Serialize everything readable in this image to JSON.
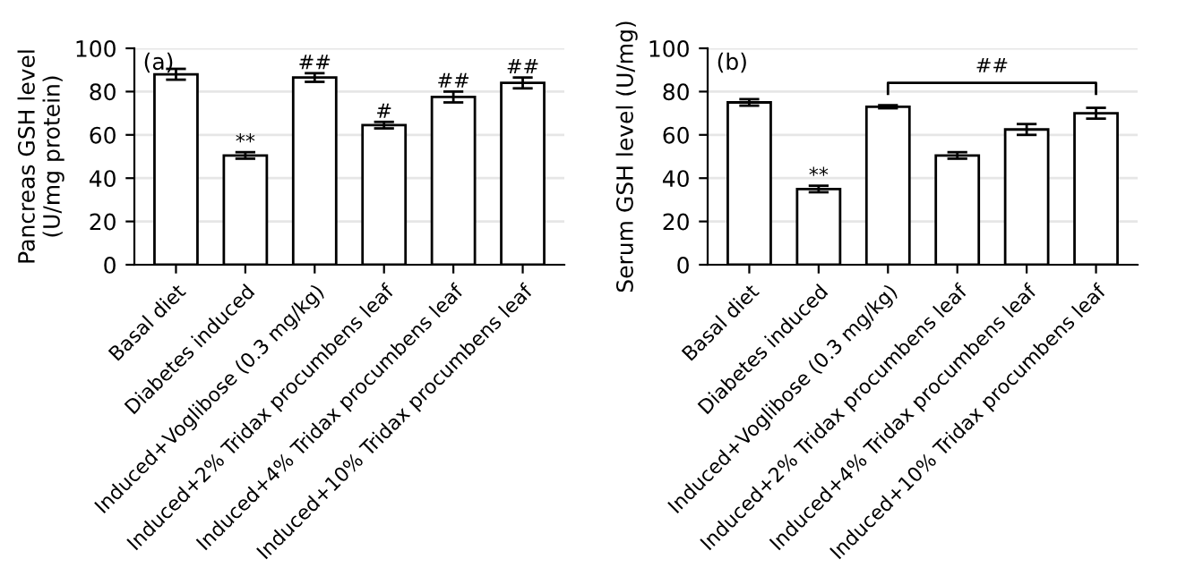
{
  "chart_data": [
    {
      "type": "bar",
      "ylabel": "Pancreas GSH level\n(U/mg protein)",
      "categories": [
        "Basal diet",
        "Diabetes induced",
        "Induced+Voglibose (0.3 mg/kg)",
        "Induced+2% Tridax procumbens leaf",
        "Induced+4% Tridax procumbens leaf",
        "Induced+10% Tridax procumbens leaf"
      ],
      "series": [
        {
          "color": "#ffffff",
          "values": [
            88,
            50.5,
            86.5,
            64.5,
            77.5,
            84
          ],
          "errors": [
            2.5,
            1.5,
            2,
            1.5,
            2.5,
            2.5
          ]
        }
      ],
      "ylim": [
        0,
        100
      ],
      "yticks": [
        0,
        20,
        40,
        60,
        80,
        100
      ],
      "grid": "y",
      "annotations": [
        "(a)",
        {
          "text": "**",
          "x": "Diabetes induced",
          "y": 52
        },
        {
          "text": "##",
          "x": "Induced+Voglibose (0.3 mg/kg)",
          "y": 88.5
        },
        {
          "text": "#",
          "x": "Induced+2% Tridax procumbens leaf",
          "y": 66
        },
        {
          "text": "##",
          "x": "Induced+4% Tridax procumbens leaf",
          "y": 80
        },
        {
          "text": "##",
          "x": "Induced+10% Tridax procumbens leaf",
          "y": 86.5
        }
      ]
    },
    {
      "type": "bar",
      "ylabel": "Serum GSH level (U/mg)",
      "categories": [
        "Basal diet",
        "Diabetes induced",
        "Induced+Voglibose (0.3 mg/kg)",
        "Induced+2% Tridax procumbens leaf",
        "Induced+4% Tridax procumbens leaf",
        "Induced+10% Tridax procumbens leaf"
      ],
      "series": [
        {
          "color": "#ffffff",
          "values": [
            75,
            35,
            73,
            50.5,
            62.5,
            70
          ],
          "errors": [
            1.5,
            1.5,
            0.7,
            1.5,
            2.5,
            2.5
          ]
        }
      ],
      "ylim": [
        0,
        100
      ],
      "yticks": [
        0,
        20,
        40,
        60,
        80,
        100
      ],
      "grid": "y",
      "annotations": [
        "(b)",
        {
          "text": "**",
          "x": "Diabetes induced",
          "y": 36.5
        },
        "##"
      ]
    }
  ]
}
